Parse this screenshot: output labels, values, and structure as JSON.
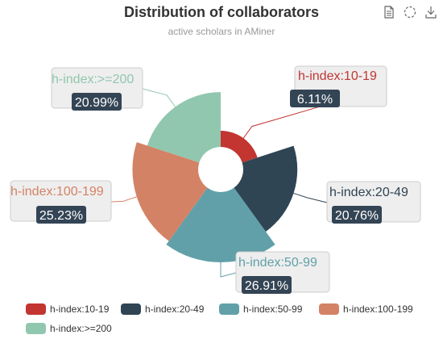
{
  "chart_data": {
    "type": "pie",
    "subtype": "rose",
    "title": "Distribution of collaborators",
    "subtitle": "active scholars in AMiner",
    "slices": [
      {
        "label": "h-index:10-19",
        "percent_label": "6.11%",
        "value": 6.11,
        "color": "#c23531"
      },
      {
        "label": "h-index:20-49",
        "percent_label": "20.76%",
        "value": 20.76,
        "color": "#2f4554"
      },
      {
        "label": "h-index:50-99",
        "percent_label": "26.91%",
        "value": 26.91,
        "color": "#61a0a8"
      },
      {
        "label": "h-index:100-199",
        "percent_label": "25.23%",
        "value": 25.23,
        "color": "#d48265"
      },
      {
        "label": "h-index:>=200",
        "percent_label": "20.99%",
        "value": 20.99,
        "color": "#91c7ae"
      }
    ],
    "legend_position": "bottom"
  },
  "toolbox": [
    "data-view-icon",
    "restore-icon",
    "save-image-icon"
  ]
}
